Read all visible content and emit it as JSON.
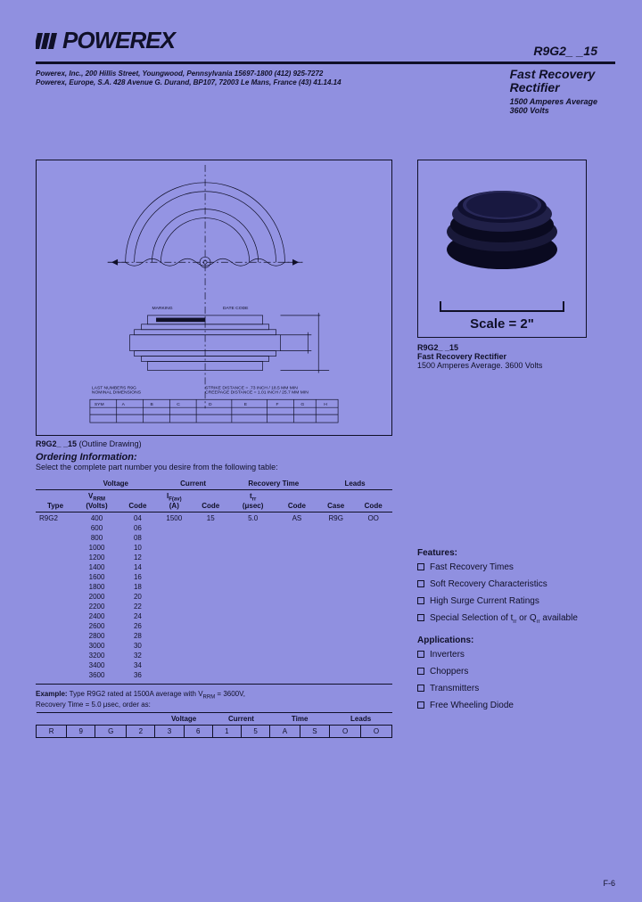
{
  "logo": "POWEREX",
  "part_number": "R9G2_ _15",
  "company": {
    "line1": "Powerex, Inc., 200 Hillis Street, Youngwood, Pennsylvania 15697-1800 (412) 925-7272",
    "line2": "Powerex, Europe, S.A. 428 Avenue G. Durand, BP107, 72003 Le Mans, France (43) 41.14.14"
  },
  "product": {
    "title1": "Fast Recovery",
    "title2": "Rectifier",
    "spec1": "1500 Amperes Average",
    "spec2": "3600 Volts"
  },
  "drawing_caption_code": "R9G2_ _15",
  "drawing_caption_suffix": "(Outline Drawing)",
  "ordering_heading": "Ordering Information:",
  "ordering_sub": "Select the complete part number you desire from the following table:",
  "photo": {
    "scale_label": "Scale = 2\"",
    "part_number": "R9G2_ _15",
    "desc": "Fast Recovery Rectifier",
    "specs": "1500 Amperes Average. 3600 Volts"
  },
  "order_table": {
    "group_headers": [
      "",
      "Voltage",
      "Current",
      "Recovery Time",
      "Leads"
    ],
    "sub_headers": [
      "Type",
      "V_RRM (Volts)",
      "Code",
      "I_F(av) (A)",
      "Code",
      "t_rr (μsec)",
      "Code",
      "Case",
      "Code"
    ],
    "type": "R9G2",
    "rows": [
      {
        "v": "400",
        "code": "04"
      },
      {
        "v": "600",
        "code": "06"
      },
      {
        "v": "800",
        "code": "08"
      },
      {
        "v": "1000",
        "code": "10"
      },
      {
        "v": "1200",
        "code": "12"
      },
      {
        "v": "1400",
        "code": "14"
      },
      {
        "v": "1600",
        "code": "16"
      },
      {
        "v": "1800",
        "code": "18"
      },
      {
        "v": "2000",
        "code": "20"
      },
      {
        "v": "2200",
        "code": "22"
      },
      {
        "v": "2400",
        "code": "24"
      },
      {
        "v": "2600",
        "code": "26"
      },
      {
        "v": "2800",
        "code": "28"
      },
      {
        "v": "3000",
        "code": "30"
      },
      {
        "v": "3200",
        "code": "32"
      },
      {
        "v": "3400",
        "code": "34"
      },
      {
        "v": "3600",
        "code": "36"
      }
    ],
    "current_a": "1500",
    "current_code": "15",
    "trr_usec": "5.0",
    "trr_code": "AS",
    "case": "R9G",
    "leads_code": "OO"
  },
  "example_label": "Example:",
  "example_text": "Type R9G2 rated at 1500A average with V_RRM = 3600V,",
  "example_text2": "Recovery Time = 5.0 μsec, order as:",
  "example_headers": [
    "",
    "",
    "",
    "",
    "Voltage",
    "Current",
    "Time",
    "Leads"
  ],
  "example_cells": [
    "R",
    "9",
    "G",
    "2",
    "3",
    "6",
    "1",
    "5",
    "A",
    "S",
    "O",
    "O"
  ],
  "features_heading": "Features:",
  "features": [
    "Fast Recovery Times",
    "Soft Recovery Characteristics",
    "High Surge Current Ratings",
    "Special Selection of t_rr or Q_rr available"
  ],
  "applications_heading": "Applications:",
  "applications": [
    "Inverters",
    "Choppers",
    "Transmitters",
    "Free Wheeling Diode"
  ],
  "page_number": "F-6"
}
